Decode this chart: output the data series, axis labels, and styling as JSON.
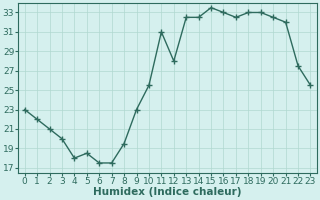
{
  "x": [
    0,
    1,
    2,
    3,
    4,
    5,
    6,
    7,
    8,
    9,
    10,
    11,
    12,
    13,
    14,
    15,
    16,
    17,
    18,
    19,
    20,
    21,
    22,
    23
  ],
  "y": [
    23,
    22,
    21,
    20,
    18,
    18.5,
    17.5,
    17.5,
    19.5,
    23,
    25.5,
    31,
    28,
    32.5,
    32.5,
    33.5,
    33,
    32.5,
    33,
    33,
    32.5,
    32,
    27.5,
    25.5
  ],
  "line_color": "#2e6b5e",
  "marker": "+",
  "markersize": 4,
  "markeredgewidth": 1.0,
  "linewidth": 1.0,
  "xlabel": "Humidex (Indice chaleur)",
  "bg_color": "#d5f0ee",
  "grid_color": "#b0d8d0",
  "tick_color": "#2e6b5e",
  "label_color": "#2e6b5e",
  "xlim": [
    -0.5,
    23.5
  ],
  "ylim": [
    16.5,
    34.0
  ],
  "yticks": [
    17,
    19,
    21,
    23,
    25,
    27,
    29,
    31,
    33
  ],
  "xticks": [
    0,
    1,
    2,
    3,
    4,
    5,
    6,
    7,
    8,
    9,
    10,
    11,
    12,
    13,
    14,
    15,
    16,
    17,
    18,
    19,
    20,
    21,
    22,
    23
  ],
  "xlabel_fontsize": 7.5,
  "tick_fontsize": 6.5
}
